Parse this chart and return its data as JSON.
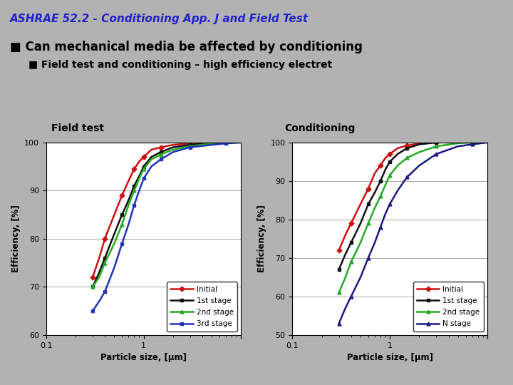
{
  "bg_color": "#b2b2b2",
  "title_text": "ASHRAE 52.2 - Conditioning App. J and Field Test",
  "title_color": "#2222cc",
  "subtitle1": "■ Can mechanical media be affected by conditioning",
  "subtitle2": "■ Field test and conditioning – high efficiency electret",
  "left_plot_title": "Field test",
  "right_plot_title": "Conditioning",
  "xlabel": "Particle size, [μm]",
  "ylabel": "Efficiency, [%]",
  "xmin": 0.1,
  "xmax": 10,
  "field_ylim": [
    60,
    100
  ],
  "cond_ylim": [
    50,
    100
  ],
  "field_yticks": [
    60,
    70,
    80,
    90,
    100
  ],
  "cond_yticks": [
    50,
    60,
    70,
    80,
    90,
    100
  ],
  "colors": {
    "Initial": "#cc1111",
    "1st stage": "#111111",
    "2nd stage": "#22aa22",
    "3rd stage": "#2233bb",
    "N stage": "#1a1a80"
  },
  "field_data": {
    "x": [
      0.3,
      0.35,
      0.4,
      0.5,
      0.6,
      0.7,
      0.8,
      0.9,
      1.0,
      1.2,
      1.5,
      2.0,
      3.0,
      5.0,
      7.0,
      10.0
    ],
    "Initial": [
      72,
      76,
      80,
      85,
      89,
      92,
      94.5,
      96,
      97,
      98.5,
      99,
      99.5,
      99.8,
      100,
      100,
      100
    ],
    "1st stage": [
      70,
      73,
      76,
      81,
      85,
      88,
      91,
      93,
      95,
      97,
      98,
      99,
      99.5,
      99.8,
      100,
      100
    ],
    "2nd stage": [
      70,
      72,
      75,
      79,
      83,
      87,
      90,
      92.5,
      94.5,
      96.5,
      97.5,
      98.5,
      99.2,
      99.8,
      100,
      100
    ],
    "3rd stage": [
      65,
      67,
      69,
      74,
      79,
      83,
      87,
      90,
      92.5,
      95,
      96.5,
      98,
      99,
      99.5,
      99.8,
      100
    ]
  },
  "cond_data": {
    "x": [
      0.3,
      0.35,
      0.4,
      0.5,
      0.6,
      0.7,
      0.8,
      0.9,
      1.0,
      1.2,
      1.5,
      2.0,
      3.0,
      5.0,
      7.0,
      10.0
    ],
    "Initial": [
      72,
      76,
      79,
      84,
      88,
      92,
      94,
      96,
      97,
      98.5,
      99.2,
      99.7,
      100,
      100,
      100,
      100
    ],
    "1st stage": [
      67,
      71,
      74,
      79,
      84,
      87,
      90,
      93,
      95,
      97,
      98.5,
      99.5,
      100,
      100,
      100,
      100
    ],
    "2nd stage": [
      61,
      65,
      69,
      74,
      79,
      83,
      86,
      89,
      91.5,
      94,
      96,
      97.5,
      99,
      99.8,
      100,
      100
    ],
    "N stage": [
      53,
      57,
      60,
      65,
      70,
      74,
      78,
      81.5,
      84,
      87.5,
      91,
      94,
      97,
      99,
      99.5,
      100
    ]
  },
  "field_legend": [
    "Initial",
    "1st stage",
    "2nd stage",
    "3rd stage"
  ],
  "cond_legend": [
    "Initial",
    "1st stage",
    "2nd stage",
    "N stage"
  ],
  "markers": {
    "Initial": "D",
    "1st stage": "s",
    "2nd stage": "^",
    "3rd stage": "s",
    "N stage": "^"
  },
  "marker_colors": {
    "Initial": "#cc1111",
    "1st stage": "#111111",
    "2nd stage": "#22aa22",
    "3rd stage": "#2233bb",
    "N stage": "#1a1a80"
  }
}
